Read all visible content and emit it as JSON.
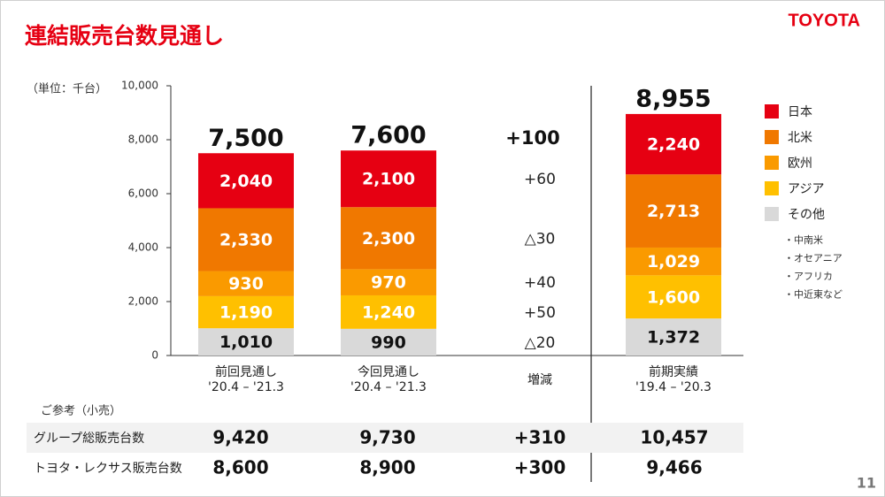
{
  "header": {
    "title": "連結販売台数見通し",
    "logo": "TOYOTA"
  },
  "chart_data": {
    "type": "stacked_bar",
    "unit_label": "（単位：千台）",
    "categories": [
      "前回見通し",
      "今回見通し",
      "前期実績"
    ],
    "periods": [
      "'20.4 – '21.3",
      "'20.4 – '21.3",
      "'19.4 – '20.3"
    ],
    "ylim": [
      0,
      10000
    ],
    "yticks": [
      0,
      {
        "value": 2000,
        "label": "2,000"
      },
      {
        "value": 4000,
        "label": "4,000"
      },
      {
        "value": 6000,
        "label": "6,000"
      },
      {
        "value": 8000,
        "label": "8,000"
      },
      {
        "value": 10000,
        "label": "10,000"
      }
    ],
    "series": [
      {
        "name": "日本",
        "color": "#e60012",
        "values": [
          2040,
          2100,
          2240
        ],
        "value_labels": [
          "2,040",
          "2,100",
          "2,240"
        ],
        "change": "+60"
      },
      {
        "name": "北米",
        "color": "#f07800",
        "values": [
          2330,
          2300,
          2713
        ],
        "value_labels": [
          "2,330",
          "2,300",
          "2,713"
        ],
        "change": "△30"
      },
      {
        "name": "欧州",
        "color": "#fa9a00",
        "values": [
          930,
          970,
          1029
        ],
        "value_labels": [
          "930",
          "970",
          "1,029"
        ],
        "change": "+40"
      },
      {
        "name": "アジア",
        "color": "#ffc000",
        "values": [
          1190,
          1240,
          1600
        ],
        "value_labels": [
          "1,190",
          "1,240",
          "1,600"
        ],
        "change": "+50"
      },
      {
        "name": "その他",
        "color": "#d9d9d9",
        "values": [
          1010,
          990,
          1372
        ],
        "value_labels": [
          "1,010",
          "990",
          "1,372"
        ],
        "change": "△20"
      }
    ],
    "totals": [
      7500,
      7600,
      8955
    ],
    "total_labels": [
      "7,500",
      "7,600",
      "8,955"
    ],
    "change_label": "増減",
    "total_change": "+100",
    "legend_notes": [
      "・中南米",
      "・オセアニア",
      "・アフリカ",
      "・中近東など"
    ]
  },
  "table": {
    "title": "ご参考（小売）",
    "rows": [
      [
        "グループ総販売台数",
        "9,420",
        "9,730",
        "+310",
        "10,457"
      ],
      [
        "トヨタ・レクサス販売台数",
        "8,600",
        "8,900",
        "+300",
        "9,466"
      ]
    ]
  },
  "footer": {
    "page": "11"
  }
}
